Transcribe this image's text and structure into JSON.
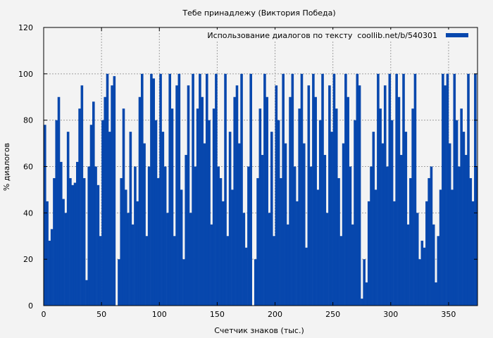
{
  "chart_data": {
    "type": "bar",
    "title": "Тебе принадлежу (Виктория Победа)",
    "xlabel": "Счетчик знаков (тыс.)",
    "ylabel": "% диалогов",
    "xlim": [
      0,
      375
    ],
    "ylim": [
      0,
      120
    ],
    "xticks": [
      0,
      50,
      100,
      150,
      200,
      250,
      300,
      350
    ],
    "yticks": [
      0,
      20,
      40,
      60,
      80,
      100,
      120
    ],
    "grid": true,
    "legend": {
      "label": "Использование диалогов по тексту  coollib.net/b/540301",
      "placement": "top-right"
    },
    "bar_color": "#0747ad",
    "x_step": 2,
    "values": [
      78,
      45,
      28,
      33,
      55,
      80,
      90,
      62,
      46,
      40,
      75,
      55,
      52,
      53,
      62,
      85,
      95,
      55,
      11,
      60,
      78,
      88,
      60,
      52,
      30,
      80,
      90,
      100,
      75,
      95,
      99,
      0,
      20,
      55,
      85,
      50,
      40,
      75,
      35,
      60,
      45,
      90,
      100,
      70,
      30,
      60,
      100,
      98,
      80,
      55,
      100,
      75,
      60,
      40,
      100,
      85,
      30,
      95,
      100,
      50,
      20,
      65,
      95,
      40,
      100,
      60,
      85,
      100,
      90,
      70,
      100,
      80,
      35,
      85,
      100,
      60,
      55,
      45,
      100,
      30,
      75,
      50,
      90,
      95,
      70,
      100,
      40,
      25,
      60,
      100,
      0,
      20,
      55,
      85,
      65,
      100,
      90,
      40,
      75,
      30,
      95,
      80,
      55,
      100,
      70,
      35,
      90,
      100,
      60,
      45,
      85,
      100,
      70,
      25,
      95,
      60,
      100,
      90,
      50,
      80,
      100,
      65,
      40,
      95,
      75,
      100,
      85,
      55,
      30,
      70,
      100,
      90,
      60,
      35,
      80,
      100,
      95,
      3,
      20,
      10,
      45,
      60,
      75,
      50,
      100,
      85,
      70,
      95,
      60,
      100,
      80,
      45,
      100,
      90,
      65,
      100,
      75,
      35,
      55,
      85,
      100,
      40,
      20,
      28,
      25,
      45,
      55,
      60,
      35,
      10,
      30,
      50,
      100,
      95,
      100,
      70,
      50,
      100,
      80,
      60,
      85,
      75,
      65,
      100,
      55,
      45,
      100,
      60
    ]
  }
}
